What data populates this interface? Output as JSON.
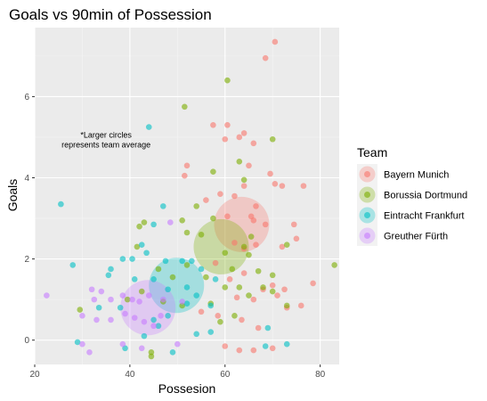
{
  "chart_data": {
    "type": "scatter",
    "title": "Goals vs 90min of Possession",
    "xlabel": "Possesion",
    "ylabel": "Goals",
    "xlim": [
      20,
      84
    ],
    "ylim": [
      -0.6,
      7.7
    ],
    "x_ticks": [
      20,
      40,
      60,
      80
    ],
    "y_ticks": [
      0,
      2,
      4,
      6
    ],
    "grid": true,
    "legend": {
      "title": "Team",
      "position": "right"
    },
    "annotation": {
      "lines": [
        "*Larger circles",
        "represents team average"
      ],
      "x": 35,
      "y": 4.9
    },
    "series": [
      {
        "name": "Bayern Munich",
        "color": "#F8766D",
        "average": {
          "x": 63.5,
          "y": 2.85
        },
        "points": [
          [
            70.5,
            7.35
          ],
          [
            68.5,
            6.95
          ],
          [
            57.5,
            5.3
          ],
          [
            60.5,
            5.3
          ],
          [
            60,
            4.95
          ],
          [
            63,
            5.0
          ],
          [
            64,
            5.1
          ],
          [
            66,
            4.85
          ],
          [
            65,
            4.3
          ],
          [
            72,
            3.8
          ],
          [
            52,
            4.3
          ],
          [
            51.5,
            4.05
          ],
          [
            56,
            3.45
          ],
          [
            59,
            3.6
          ],
          [
            62,
            3.55
          ],
          [
            64,
            3.8
          ],
          [
            69.5,
            4.1
          ],
          [
            70.5,
            3.85
          ],
          [
            76.5,
            3.8
          ],
          [
            66.5,
            3.3
          ],
          [
            60.5,
            3.05
          ],
          [
            65.5,
            3.05
          ],
          [
            66,
            2.95
          ],
          [
            68.5,
            2.85
          ],
          [
            74.5,
            2.85
          ],
          [
            62,
            2.4
          ],
          [
            64,
            2.25
          ],
          [
            66.5,
            2.35
          ],
          [
            72,
            2.3
          ],
          [
            75,
            2.5
          ],
          [
            58,
            1.9
          ],
          [
            61,
            1.5
          ],
          [
            64,
            1.65
          ],
          [
            68,
            1.25
          ],
          [
            70,
            1.35
          ],
          [
            72.5,
            1.25
          ],
          [
            78.5,
            1.4
          ],
          [
            62.5,
            1.05
          ],
          [
            66,
            1.0
          ],
          [
            71,
            1.1
          ],
          [
            73,
            0.8
          ],
          [
            76,
            0.85
          ],
          [
            55,
            0.7
          ],
          [
            58.5,
            0.6
          ],
          [
            63.5,
            0.5
          ],
          [
            67,
            0.3
          ],
          [
            60,
            -0.15
          ],
          [
            63,
            -0.25
          ],
          [
            66,
            -0.25
          ],
          [
            70,
            -0.2
          ]
        ]
      },
      {
        "name": "Borussia Dortmund",
        "color": "#7CAE00",
        "average": {
          "x": 59.2,
          "y": 2.3
        },
        "points": [
          [
            60.5,
            6.4
          ],
          [
            51.5,
            5.75
          ],
          [
            70,
            4.95
          ],
          [
            63,
            4.4
          ],
          [
            57.5,
            4.15
          ],
          [
            64,
            3.95
          ],
          [
            54,
            3.3
          ],
          [
            57.5,
            3.0
          ],
          [
            51,
            2.95
          ],
          [
            42,
            2.8
          ],
          [
            43,
            2.9
          ],
          [
            52,
            2.65
          ],
          [
            55,
            2.6
          ],
          [
            41.5,
            2.3
          ],
          [
            60,
            2.15
          ],
          [
            64,
            2.3
          ],
          [
            65,
            2.1
          ],
          [
            65.5,
            2.55
          ],
          [
            73,
            2.35
          ],
          [
            83,
            1.85
          ],
          [
            61.5,
            1.75
          ],
          [
            67,
            1.7
          ],
          [
            70,
            1.6
          ],
          [
            46,
            1.75
          ],
          [
            49,
            1.55
          ],
          [
            52,
            1.85
          ],
          [
            56,
            1.55
          ],
          [
            60,
            1.3
          ],
          [
            63,
            1.3
          ],
          [
            65,
            1.1
          ],
          [
            68,
            1.3
          ],
          [
            70,
            1.2
          ],
          [
            73,
            0.85
          ],
          [
            39.5,
            1.0
          ],
          [
            42.5,
            1.2
          ],
          [
            47,
            0.95
          ],
          [
            51,
            0.85
          ],
          [
            57,
            0.9
          ],
          [
            29.5,
            0.75
          ],
          [
            59,
            0.45
          ],
          [
            62,
            0.6
          ],
          [
            44.5,
            -0.3
          ],
          [
            44.5,
            -0.4
          ]
        ]
      },
      {
        "name": "Eintracht Frankfurt",
        "color": "#00BFC4",
        "average": {
          "x": 49.8,
          "y": 1.35
        },
        "points": [
          [
            44,
            5.25
          ],
          [
            25.5,
            3.35
          ],
          [
            47,
            3.3
          ],
          [
            45,
            2.85
          ],
          [
            42.5,
            2.35
          ],
          [
            43.5,
            2.15
          ],
          [
            28,
            1.85
          ],
          [
            38.5,
            2.0
          ],
          [
            40.5,
            2.0
          ],
          [
            36,
            1.75
          ],
          [
            35.5,
            1.6
          ],
          [
            47.5,
            1.95
          ],
          [
            51,
            1.95
          ],
          [
            53,
            1.95
          ],
          [
            41,
            1.5
          ],
          [
            45,
            1.5
          ],
          [
            55,
            1.75
          ],
          [
            48,
            1.25
          ],
          [
            52,
            1.3
          ],
          [
            58,
            1.5
          ],
          [
            54,
            1.1
          ],
          [
            52,
            0.9
          ],
          [
            57,
            0.85
          ],
          [
            38,
            0.8
          ],
          [
            33.5,
            0.8
          ],
          [
            45,
            0.5
          ],
          [
            48,
            0.6
          ],
          [
            46,
            0.35
          ],
          [
            69,
            0.3
          ],
          [
            57,
            0.2
          ],
          [
            54,
            0.15
          ],
          [
            43,
            0.1
          ],
          [
            29,
            -0.05
          ],
          [
            39,
            -0.2
          ],
          [
            49,
            -0.3
          ],
          [
            68.5,
            -0.15
          ],
          [
            73,
            -0.1
          ]
        ]
      },
      {
        "name": "Greuther Fürth",
        "color": "#C77CFF",
        "average": {
          "x": 43.8,
          "y": 0.8
        },
        "points": [
          [
            48.5,
            2.9
          ],
          [
            22.5,
            1.1
          ],
          [
            32,
            1.25
          ],
          [
            32.5,
            1.0
          ],
          [
            34,
            1.2
          ],
          [
            36,
            1.0
          ],
          [
            38.5,
            1.1
          ],
          [
            40.5,
            1.0
          ],
          [
            42,
            0.95
          ],
          [
            44,
            1.1
          ],
          [
            47,
            1.0
          ],
          [
            51,
            0.95
          ],
          [
            30,
            0.6
          ],
          [
            33,
            0.5
          ],
          [
            36,
            0.5
          ],
          [
            39,
            0.65
          ],
          [
            41,
            0.55
          ],
          [
            43,
            0.45
          ],
          [
            45,
            0.35
          ],
          [
            46.5,
            0.6
          ],
          [
            30,
            -0.1
          ],
          [
            31.5,
            -0.3
          ],
          [
            38.5,
            -0.1
          ],
          [
            42.5,
            -0.2
          ],
          [
            50,
            -0.1
          ]
        ]
      }
    ]
  }
}
